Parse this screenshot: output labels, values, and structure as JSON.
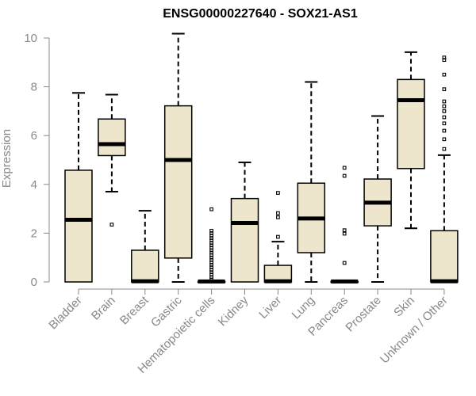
{
  "chart_data": {
    "type": "boxplot",
    "title": "ENSG00000227640 - SOX21-AS1",
    "xlabel": "",
    "ylabel": "Expression",
    "ylim": [
      0,
      10
    ],
    "yticks": [
      0,
      2,
      4,
      6,
      8,
      10
    ],
    "grid": false,
    "colors": {
      "box_fill": "#ede6cc",
      "box_stroke": "#000000",
      "axis": "#888888"
    },
    "categories": [
      "Bladder",
      "Brain",
      "Breast",
      "Gastric",
      "Hematopoietic cells",
      "Kidney",
      "Liver",
      "Lung",
      "Pancreas",
      "Prostate",
      "Skin",
      "Unknown / Other"
    ],
    "boxes": [
      {
        "min": 0.0,
        "q1": 0.0,
        "median": 2.55,
        "q3": 4.58,
        "max": 7.75,
        "outliers": []
      },
      {
        "min": 3.7,
        "q1": 5.18,
        "median": 5.65,
        "q3": 6.68,
        "max": 7.68,
        "outliers": [
          2.35
        ]
      },
      {
        "min": 0.0,
        "q1": 0.0,
        "median": 0.03,
        "q3": 1.3,
        "max": 2.92,
        "outliers": []
      },
      {
        "min": 0.0,
        "q1": 0.98,
        "median": 5.0,
        "q3": 7.22,
        "max": 10.18,
        "outliers": []
      },
      {
        "min": 0.0,
        "q1": 0.0,
        "median": 0.02,
        "q3": 0.02,
        "max": 0.03,
        "outliers": [
          0.1,
          0.2,
          0.3,
          0.4,
          0.5,
          0.6,
          0.7,
          0.8,
          0.9,
          1.0,
          1.1,
          1.2,
          1.3,
          1.4,
          1.5,
          1.6,
          1.7,
          1.8,
          1.9,
          2.0,
          2.1,
          2.98
        ]
      },
      {
        "min": 0.0,
        "q1": 0.0,
        "median": 2.42,
        "q3": 3.42,
        "max": 4.9,
        "outliers": []
      },
      {
        "min": 0.0,
        "q1": 0.0,
        "median": 0.03,
        "q3": 0.68,
        "max": 1.65,
        "outliers": [
          1.85,
          2.65,
          2.82,
          3.65
        ]
      },
      {
        "min": 0.0,
        "q1": 1.2,
        "median": 2.6,
        "q3": 4.05,
        "max": 8.2,
        "outliers": []
      },
      {
        "min": 0.0,
        "q1": 0.0,
        "median": 0.02,
        "q3": 0.02,
        "max": 0.03,
        "outliers": [
          0.78,
          1.98,
          2.12,
          4.35,
          4.68
        ]
      },
      {
        "min": 0.0,
        "q1": 2.3,
        "median": 3.25,
        "q3": 4.22,
        "max": 6.8,
        "outliers": []
      },
      {
        "min": 2.2,
        "q1": 4.65,
        "median": 7.45,
        "q3": 8.3,
        "max": 9.42,
        "outliers": []
      },
      {
        "min": 0.0,
        "q1": 0.0,
        "median": 0.03,
        "q3": 2.1,
        "max": 5.2,
        "outliers": [
          5.45,
          5.85,
          6.2,
          6.5,
          6.75,
          7.0,
          7.2,
          7.4,
          7.9,
          8.5,
          9.1,
          9.2
        ]
      }
    ]
  }
}
